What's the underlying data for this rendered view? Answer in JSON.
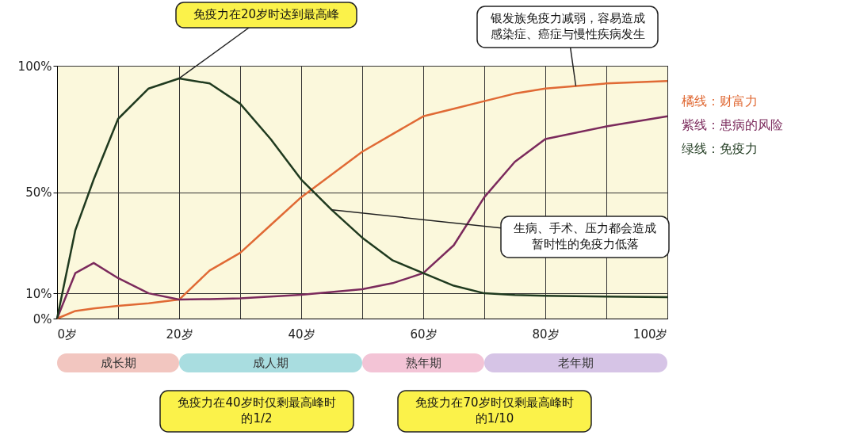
{
  "chart_data": {
    "type": "line",
    "x": [
      0,
      3,
      6,
      10,
      15,
      20,
      25,
      30,
      35,
      40,
      45,
      50,
      55,
      60,
      65,
      70,
      75,
      80,
      90,
      100
    ],
    "series": [
      {
        "name": "橘线：财富力",
        "color": "#e06a35",
        "values": [
          0,
          3,
          4,
          5,
          6,
          7.5,
          19,
          26,
          37,
          48,
          57,
          66,
          73,
          80,
          83,
          86,
          89,
          91,
          93,
          94
        ]
      },
      {
        "name": "紫线：患病的风险",
        "color": "#7b2a5c",
        "values": [
          0,
          18,
          22,
          16,
          10,
          7.5,
          7.7,
          8,
          8.7,
          9.4,
          10.5,
          11.6,
          14,
          18,
          29,
          48,
          62,
          71,
          76,
          80
        ]
      },
      {
        "name": "绿线：免疫力",
        "color": "#1f3a1f",
        "values": [
          0,
          35,
          55,
          79,
          91,
          95,
          93,
          85,
          71,
          55,
          43,
          32,
          23,
          18,
          13,
          10,
          9.3,
          9,
          8.7,
          8.5
        ]
      }
    ],
    "xlim": [
      0,
      100
    ],
    "xticks": [
      {
        "value": 0,
        "label": "0岁"
      },
      {
        "value": 10,
        "label": null
      },
      {
        "value": 20,
        "label": "20岁"
      },
      {
        "value": 30,
        "label": null
      },
      {
        "value": 40,
        "label": "40岁"
      },
      {
        "value": 50,
        "label": null
      },
      {
        "value": 60,
        "label": "60岁"
      },
      {
        "value": 70,
        "label": null
      },
      {
        "value": 80,
        "label": "80岁"
      },
      {
        "value": 90,
        "label": null
      },
      {
        "value": 100,
        "label": "100岁"
      }
    ],
    "ylim": [
      0,
      100
    ],
    "yticks": [
      {
        "value": 0,
        "label": "0%"
      },
      {
        "value": 10,
        "label": "10%"
      },
      {
        "value": 50,
        "label": "50%"
      },
      {
        "value": 100,
        "label": "100%"
      }
    ],
    "annotations": [
      {
        "text": "免疫力在20岁时达到最高峰",
        "x": 20,
        "y": 95
      },
      {
        "text": "生病、手术、压力都会造成暂时性的免疫力低落",
        "x": 45,
        "y": 43
      },
      {
        "text": "银发族免疫力减弱，容易造成感染症、癌症与慢性疾病发生",
        "x": 85,
        "y": 92
      },
      "免疫力在40岁时仅剩最高峰时的1/2",
      "免疫力在70岁时仅剩最高峰时的1/10",
      "成长期",
      "成人期",
      "熟年期",
      "老年期"
    ],
    "grid": true,
    "legend": "right",
    "line_style": "solid"
  }
}
